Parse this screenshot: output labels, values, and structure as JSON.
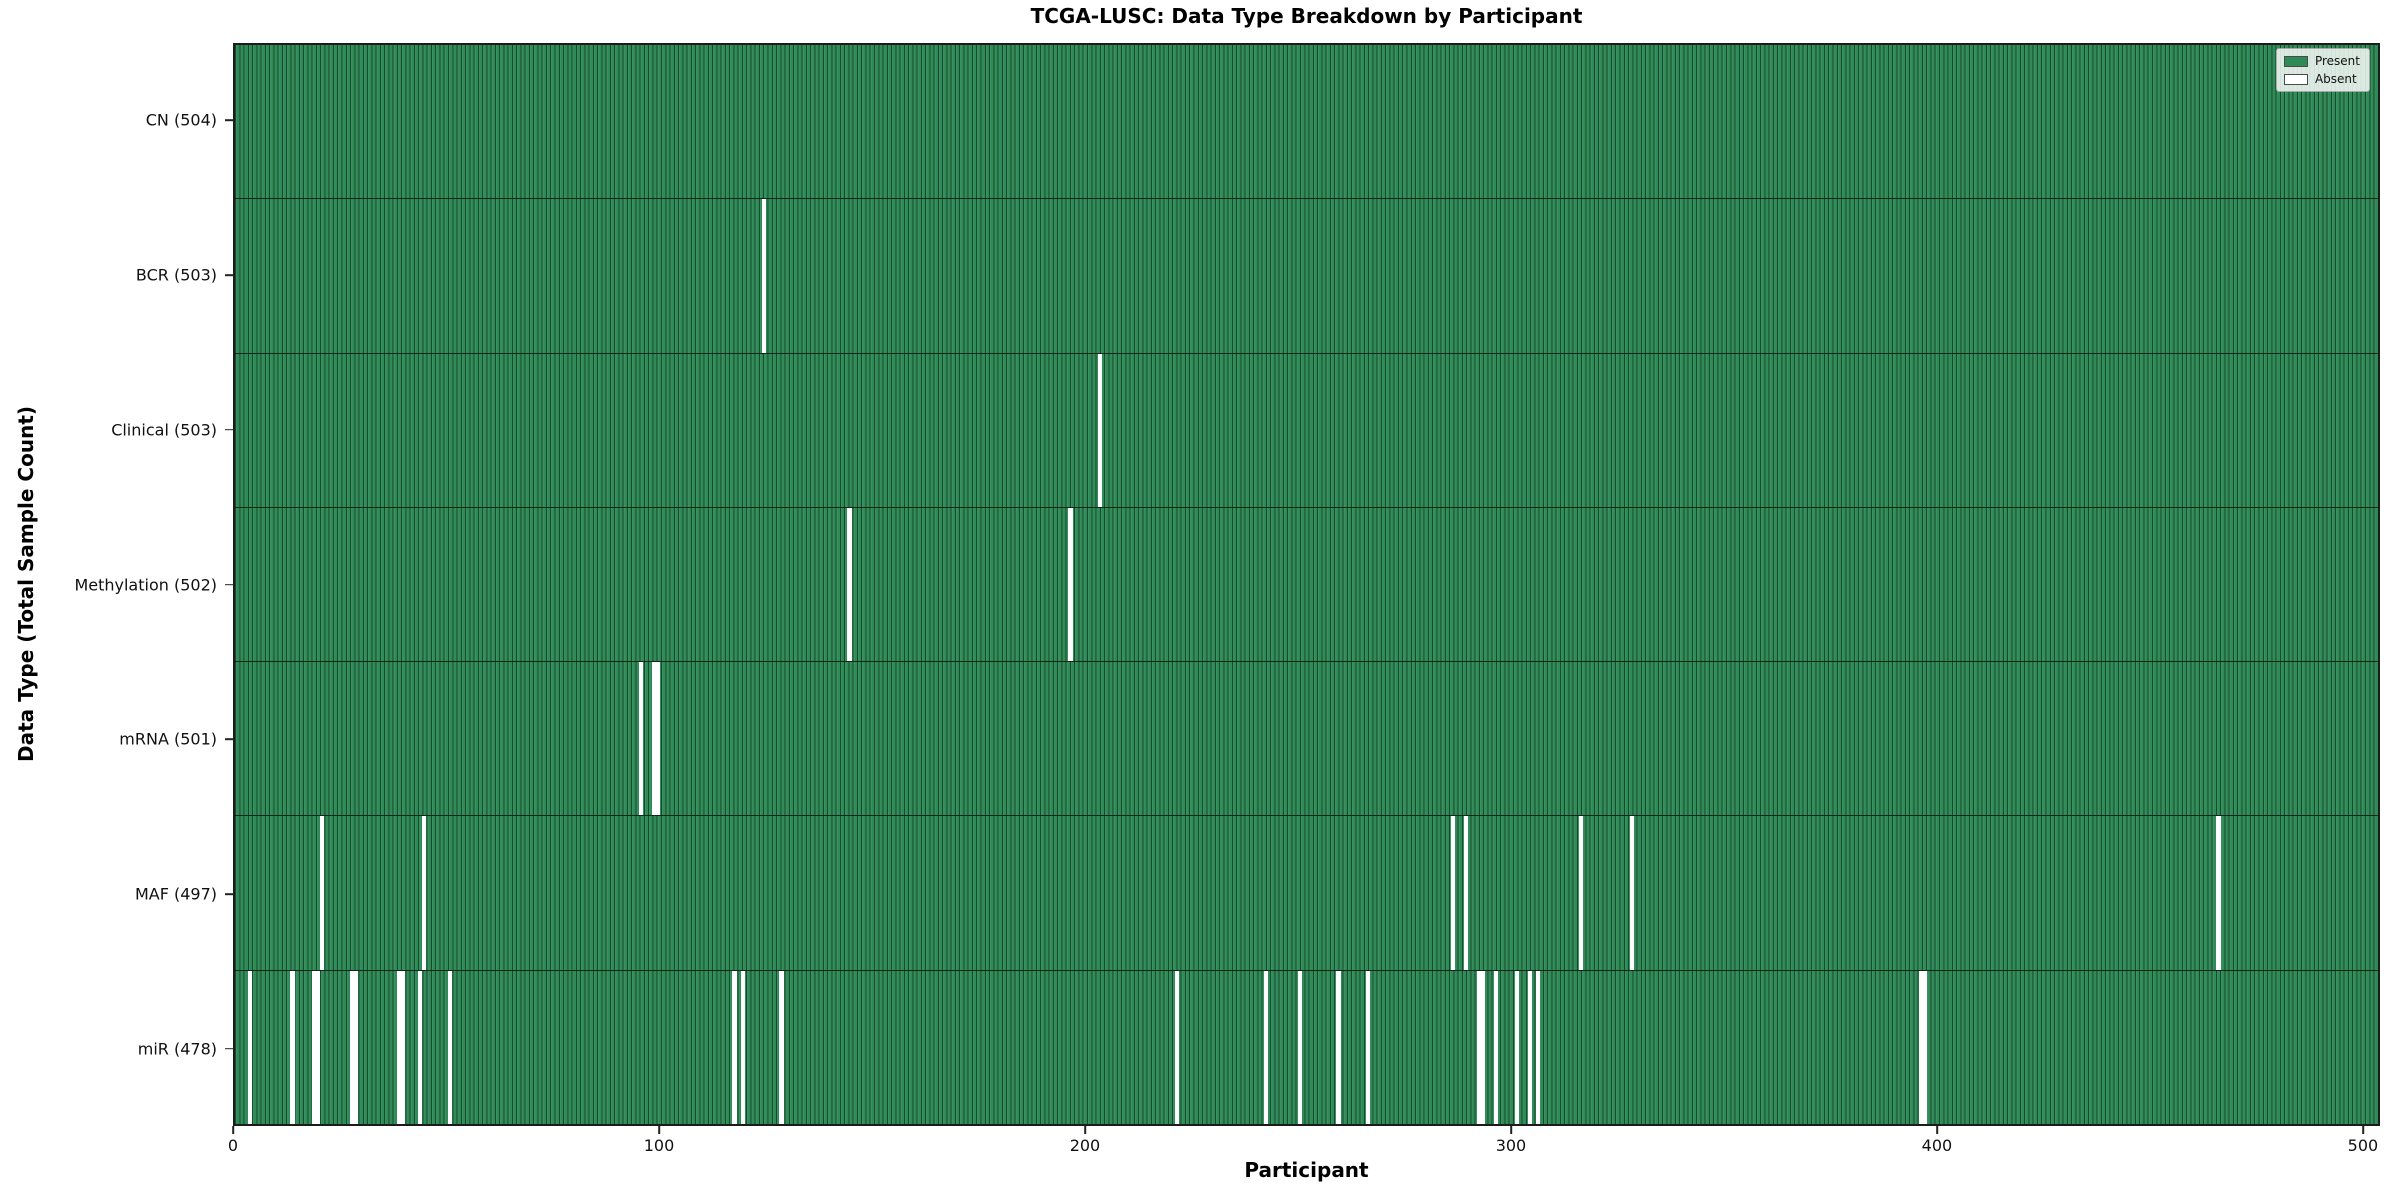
{
  "header": {
    "title": "TCGA-LUSC: Data Type Breakdown by Participant"
  },
  "chart_data": {
    "type": "heatmap",
    "title": "TCGA-LUSC: Data Type Breakdown by Participant",
    "xlabel": "Participant",
    "ylabel": "Data Type (Total Sample Count)",
    "xlim": [
      0,
      504
    ],
    "x_ticks": [
      0,
      100,
      200,
      300,
      400,
      500
    ],
    "n_participants": 504,
    "grid": false,
    "legend": {
      "position": "upper-right",
      "entries": [
        {
          "label": "Present",
          "color": "#2e8b57"
        },
        {
          "label": "Absent",
          "color": "#ffffff"
        }
      ]
    },
    "colors": {
      "present": "#2e8b57",
      "absent": "#ffffff",
      "bar_edge": "#14301f"
    },
    "rows": [
      {
        "short": "cn",
        "label": "CN (504)",
        "data_type": "CN",
        "count": 504,
        "absent": []
      },
      {
        "short": "bcr",
        "label": "BCR (503)",
        "data_type": "BCR",
        "count": 503,
        "absent": [
          124
        ]
      },
      {
        "short": "clinical",
        "label": "Clinical (503)",
        "data_type": "Clinical",
        "count": 503,
        "absent": [
          203
        ]
      },
      {
        "short": "methylation",
        "label": "Methylation (502)",
        "data_type": "Methylation",
        "count": 502,
        "absent": [
          144,
          196
        ]
      },
      {
        "short": "mrna",
        "label": "mRNA (501)",
        "data_type": "mRNA",
        "count": 501,
        "absent": [
          95,
          98,
          99
        ]
      },
      {
        "short": "maf",
        "label": "MAF (497)",
        "data_type": "MAF",
        "count": 497,
        "absent": [
          20,
          44,
          286,
          289,
          316,
          328,
          466
        ]
      },
      {
        "short": "mir",
        "label": "miR (478)",
        "data_type": "miR",
        "count": 478,
        "absent": [
          3,
          13,
          18,
          19,
          27,
          28,
          38,
          39,
          43,
          50,
          117,
          119,
          128,
          221,
          242,
          250,
          259,
          266,
          292,
          293,
          296,
          301,
          304,
          306,
          396,
          397
        ]
      }
    ]
  }
}
